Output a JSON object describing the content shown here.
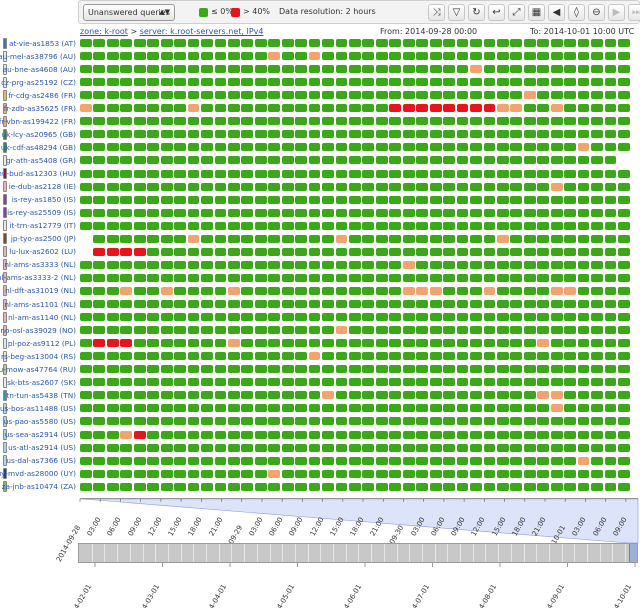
{
  "toolbar": {
    "select_value": "Unanswered queries",
    "legend_ok": "≤ 0%",
    "legend_bad": "> 40%",
    "resolution": "Data resolution: 2 hours",
    "colors": {
      "ok": "#3aa819",
      "warn": "#f2a36e",
      "bad": "#e8141b",
      "nodata": "#ffffff"
    },
    "icons": [
      "collapse-icon",
      "filter-icon",
      "refresh-icon",
      "undo-icon",
      "zoom-fit-icon",
      "calendar-icon",
      "step-start-icon",
      "slider-icon",
      "zoom-out-icon",
      "next-icon",
      "skip-end-icon"
    ]
  },
  "breadcrumb": {
    "zone": "zone: k-root",
    "sep": ">",
    "server": "server: k.root-servers.net, IPv4"
  },
  "range": {
    "from": "From: 2014-09-28 00:00",
    "to": "To: 2014-10-01 10:00 UTC"
  },
  "rows": [
    {
      "label": "at-vie-as1853 (AT)",
      "color": "#4a6fb5"
    },
    {
      "label": "au-mel-as38796 (AU)",
      "color": "#e8e8e8"
    },
    {
      "label": "au-bne-as4608 (AU)",
      "color": "#e8e8e8"
    },
    {
      "label": "cz-prg-as25192 (CZ)",
      "color": "#e8e8e8"
    },
    {
      "label": "fr-cdg-as2486 (FR)",
      "color": "#f0b070"
    },
    {
      "label": "fr-zdb-as35625 (FR)",
      "color": "#f0b070"
    },
    {
      "label": "fr-vbn-as199422 (FR)",
      "color": "#f0b070"
    },
    {
      "label": "uk-lcy-as20965 (GB)",
      "color": "#2f8f3a"
    },
    {
      "label": "uk-cdf-as48294 (GB)",
      "color": "#2f8f3a"
    },
    {
      "label": "gr-ath-as5408 (GR)",
      "color": "#e8e8e8"
    },
    {
      "label": "hu-bud-as12303 (HU)",
      "color": "#8b1a2b"
    },
    {
      "label": "ie-dub-as2128 (IE)",
      "color": "#e8b0c0"
    },
    {
      "label": "is-rey-as1850 (IS)",
      "color": "#8a3fa0"
    },
    {
      "label": "is-rey-as25509 (IS)",
      "color": "#8a3fa0"
    },
    {
      "label": "it-trn-as12779 (IT)",
      "color": "#e8e8e8"
    },
    {
      "label": "jp-tyo-as2500 (JP)",
      "color": "#7a4a2a"
    },
    {
      "label": "lu-lux-as2602 (LU)",
      "color": "#e8b0c0"
    },
    {
      "label": "nl-ams-as3333 (NL)",
      "color": "#e8b0c0"
    },
    {
      "label": "nl-ams-as3333-2 (NL)",
      "color": "#e8b0c0"
    },
    {
      "label": "nl-dft-as31019 (NL)",
      "color": "#e8b0c0"
    },
    {
      "label": "nl-ams-as1101 (NL)",
      "color": "#e8b0c0"
    },
    {
      "label": "nl-am-as1140 (NL)",
      "color": "#e8b0c0"
    },
    {
      "label": "no-osl-as39029 (NO)",
      "color": "#e8b0c0"
    },
    {
      "label": "pl-poz-as9112 (PL)",
      "color": "#e8e8e8"
    },
    {
      "label": "rs-beg-as13004 (RS)",
      "color": "#e8e8e8"
    },
    {
      "label": "ru-mow-as47764 (RU)",
      "color": "#c8c870"
    },
    {
      "label": "sk-bts-as2607 (SK)",
      "color": "#e8e8e8"
    },
    {
      "label": "tn-tun-as5438 (TN)",
      "color": "#3a8fc0"
    },
    {
      "label": "us-bos-as11488 (US)",
      "color": "#a8d8f0"
    },
    {
      "label": "us-pao-as5580 (US)",
      "color": "#a8d8f0"
    },
    {
      "label": "us-sea-as2914 (US)",
      "color": "#a8d8f0"
    },
    {
      "label": "us-atl-as2914 (US)",
      "color": "#a8d8f0"
    },
    {
      "label": "us-dal-as7366 (US)",
      "color": "#a8d8f0"
    },
    {
      "label": "uy-mvd-as28000 (UY)",
      "color": "#2a3f8a"
    },
    {
      "label": "za-jnb-as10474 (ZA)",
      "color": "#8aba50"
    }
  ],
  "chart_data": {
    "type": "heatmap",
    "metric": "Unanswered queries",
    "columns": 41,
    "x_start": "2014-09-28 00:00",
    "x_step_hours": 2,
    "levels": {
      "0": "≤ 0%",
      "1": "between 0% and 40%",
      "2": "> 40%",
      "-1": "no data"
    },
    "cells": [
      "00000000000000000000000000000000000000000",
      "00000000000000100100000000000000000000000",
      "00000000000000000000000000000100000000000",
      "00000000000000000000000000000000000000000",
      "00000000000000000000000000000000010000000",
      "10000000100000000000000222222221100100000",
      "00000000000000000000000000000000000000000",
      "00000000000000000000000000000000000000000",
      "00000000000000000000000000000000000001000",
      "0000000000000000000000000000000000000000-",
      "00000000000000000000000000000000000000000",
      "00000000000000000000000000000000000100000",
      "00000000000000000000000000000000000000000",
      "00000000000000000000000000000000000000000",
      "00000000000000000000000000000000000000000",
      "-0000000100000000001000000000001000000000",
      "-22220000000000000000000000000000000000000",
      "00000000000000000000000010000000000000000",
      "00000000000000000000000000000000000000000",
      "00010010000100000000000011100010000110000",
      "00000000000000000000000000000000000000000",
      "00000000000000000000000000000000000000000",
      "00000000000000000001000000000000000000000",
      "02220000000100000000000000000000001000000",
      "00000000000000000100000000000000000000000",
      "00000000000000000000000000000000000000000",
      "00000000000000000000000000000000000000000",
      "00000000000000000010000000000000001100000",
      "00000000000000000000000000000000000100000",
      "00000000000000000000000000000000000000000",
      "00012000000000000000000000000000000000000",
      "00000000000000000000000000000000000000000",
      "00000000000000000000000000000000000001000",
      "00000000000000100000000000000000000000000",
      "00000000000000000000000000000000000000000"
    ],
    "detail_ticks": [
      "2014-09-28",
      "03:00",
      "06:00",
      "09:00",
      "12:00",
      "15:00",
      "18:00",
      "21:00",
      "2014-09-29",
      "03:00",
      "06:00",
      "09:00",
      "12:00",
      "15:00",
      "18:00",
      "21:00",
      "2014-09-30",
      "03:00",
      "06:00",
      "09:00",
      "12:00",
      "15:00",
      "18:00",
      "21:00",
      "2014-10-01",
      "03:00",
      "06:00",
      "09:00"
    ],
    "overview_ticks": [
      "2014-02-01",
      "2014-03-01",
      "2014-04-01",
      "2014-05-01",
      "2014-06-01",
      "2014-07-01",
      "2014-08-01",
      "2014-09-01",
      "2014-10-01"
    ]
  }
}
